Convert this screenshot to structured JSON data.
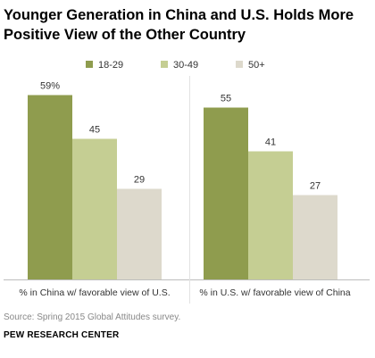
{
  "title": "Younger Generation in China and U.S. Holds More Positive View of the Other Country",
  "chart_data": {
    "type": "bar",
    "categories": [
      "% in China w/ favorable view of U.S.",
      "% in U.S. w/ favorable view of China"
    ],
    "series": [
      {
        "name": "18-29",
        "values": [
          59,
          55
        ],
        "labels": [
          "59%",
          "55"
        ],
        "color": "#8f9c4e"
      },
      {
        "name": "30-49",
        "values": [
          45,
          41
        ],
        "labels": [
          "45",
          "41"
        ],
        "color": "#c5ce93"
      },
      {
        "name": "50+",
        "values": [
          29,
          27
        ],
        "labels": [
          "29",
          "27"
        ],
        "color": "#ddd9cc"
      }
    ],
    "ylim": [
      0,
      70
    ],
    "grid": false,
    "legend": "top-center"
  },
  "source": "Source: Spring 2015 Global Attitudes survey.",
  "org": "PEW RESEARCH CENTER"
}
